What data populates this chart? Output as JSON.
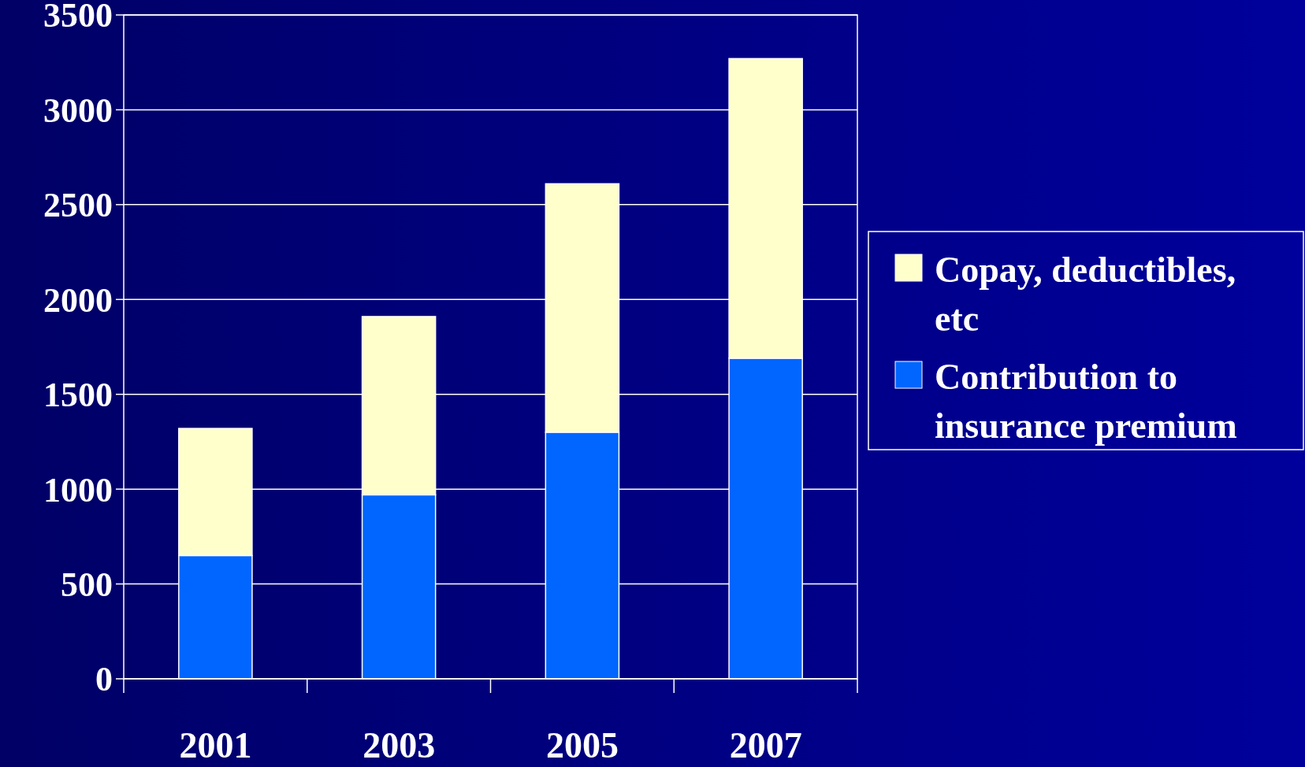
{
  "chart_data": {
    "type": "bar",
    "stacked": true,
    "categories": [
      "2001",
      "2003",
      "2005",
      "2007"
    ],
    "series": [
      {
        "name": "Contribution to insurance premium",
        "color": "#0066ff",
        "values": [
          650,
          970,
          1300,
          1690
        ]
      },
      {
        "name": "Copay, deductibles, etc",
        "color": "#ffffcc",
        "values": [
          670,
          940,
          1310,
          1580
        ]
      }
    ],
    "ylim": [
      0,
      3500
    ],
    "yticks": [
      0,
      500,
      1000,
      1500,
      2000,
      2500,
      3000,
      3500
    ],
    "grid": "y",
    "legend": "right"
  }
}
